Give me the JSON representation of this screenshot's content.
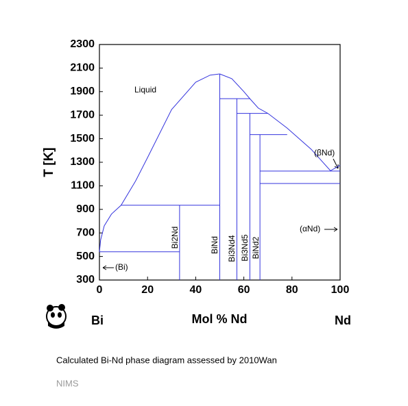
{
  "chart_data": {
    "type": "line",
    "xlabel": "Mol % Nd",
    "ylabel": "T [K]",
    "left_element": "Bi",
    "right_element": "Nd",
    "caption": "Calculated Bi-Nd phase diagram assessed by 2010Wan",
    "source": "NIMS",
    "xlim": [
      0,
      100
    ],
    "xticks": [
      0,
      20,
      40,
      60,
      80,
      100
    ],
    "ylim": [
      300,
      2300
    ],
    "yticks": [
      300,
      500,
      700,
      900,
      1100,
      1300,
      1500,
      1700,
      1900,
      2100,
      2300
    ],
    "annotations": [
      "Liquid",
      "(Bi)",
      "(βNd)",
      "(αNd)"
    ],
    "compounds": [
      "Bi2Nd",
      "BiNd",
      "Bi3Nd4",
      "Bi3Nd5",
      "BiNd2"
    ],
    "series": [
      {
        "color": "#3333dd",
        "x": [
          0,
          0.5,
          2,
          5,
          9,
          15,
          20,
          30,
          40,
          46,
          50
        ],
        "values": [
          540,
          640,
          760,
          860,
          935,
          1140,
          1340,
          1748,
          1980,
          2040,
          2050
        ]
      },
      {
        "color": "#3333dd",
        "x": [
          50,
          55,
          60,
          62.5,
          66,
          70,
          78,
          88,
          96,
          100
        ],
        "values": [
          2050,
          2010,
          1900,
          1840,
          1760,
          1715,
          1590,
          1410,
          1228,
          1275
        ]
      },
      {
        "color": "#3333dd",
        "x": [
          0,
          33.3
        ],
        "values": [
          540,
          540
        ]
      },
      {
        "color": "#3333dd",
        "x": [
          9,
          50
        ],
        "values": [
          935,
          935
        ]
      },
      {
        "color": "#3333dd",
        "x": [
          33.3,
          33.3
        ],
        "values": [
          300,
          935
        ]
      },
      {
        "color": "#3333dd",
        "x": [
          50,
          50
        ],
        "values": [
          300,
          2050
        ]
      },
      {
        "color": "#3333dd",
        "x": [
          57.1,
          57.1
        ],
        "values": [
          300,
          1840
        ]
      },
      {
        "color": "#3333dd",
        "x": [
          62.5,
          62.5
        ],
        "values": [
          300,
          1715
        ]
      },
      {
        "color": "#3333dd",
        "x": [
          66.7,
          66.7
        ],
        "values": [
          300,
          1535
        ]
      },
      {
        "color": "#3333dd",
        "x": [
          50,
          62.5
        ],
        "values": [
          1840,
          1840
        ]
      },
      {
        "color": "#3333dd",
        "x": [
          57.1,
          70
        ],
        "values": [
          1715,
          1715
        ]
      },
      {
        "color": "#3333dd",
        "x": [
          62.5,
          78
        ],
        "values": [
          1535,
          1535
        ]
      },
      {
        "color": "#3333dd",
        "x": [
          66.7,
          100
        ],
        "values": [
          1225,
          1225
        ]
      },
      {
        "color": "#3333dd",
        "x": [
          66.7,
          100
        ],
        "values": [
          1120,
          1120
        ]
      }
    ]
  }
}
